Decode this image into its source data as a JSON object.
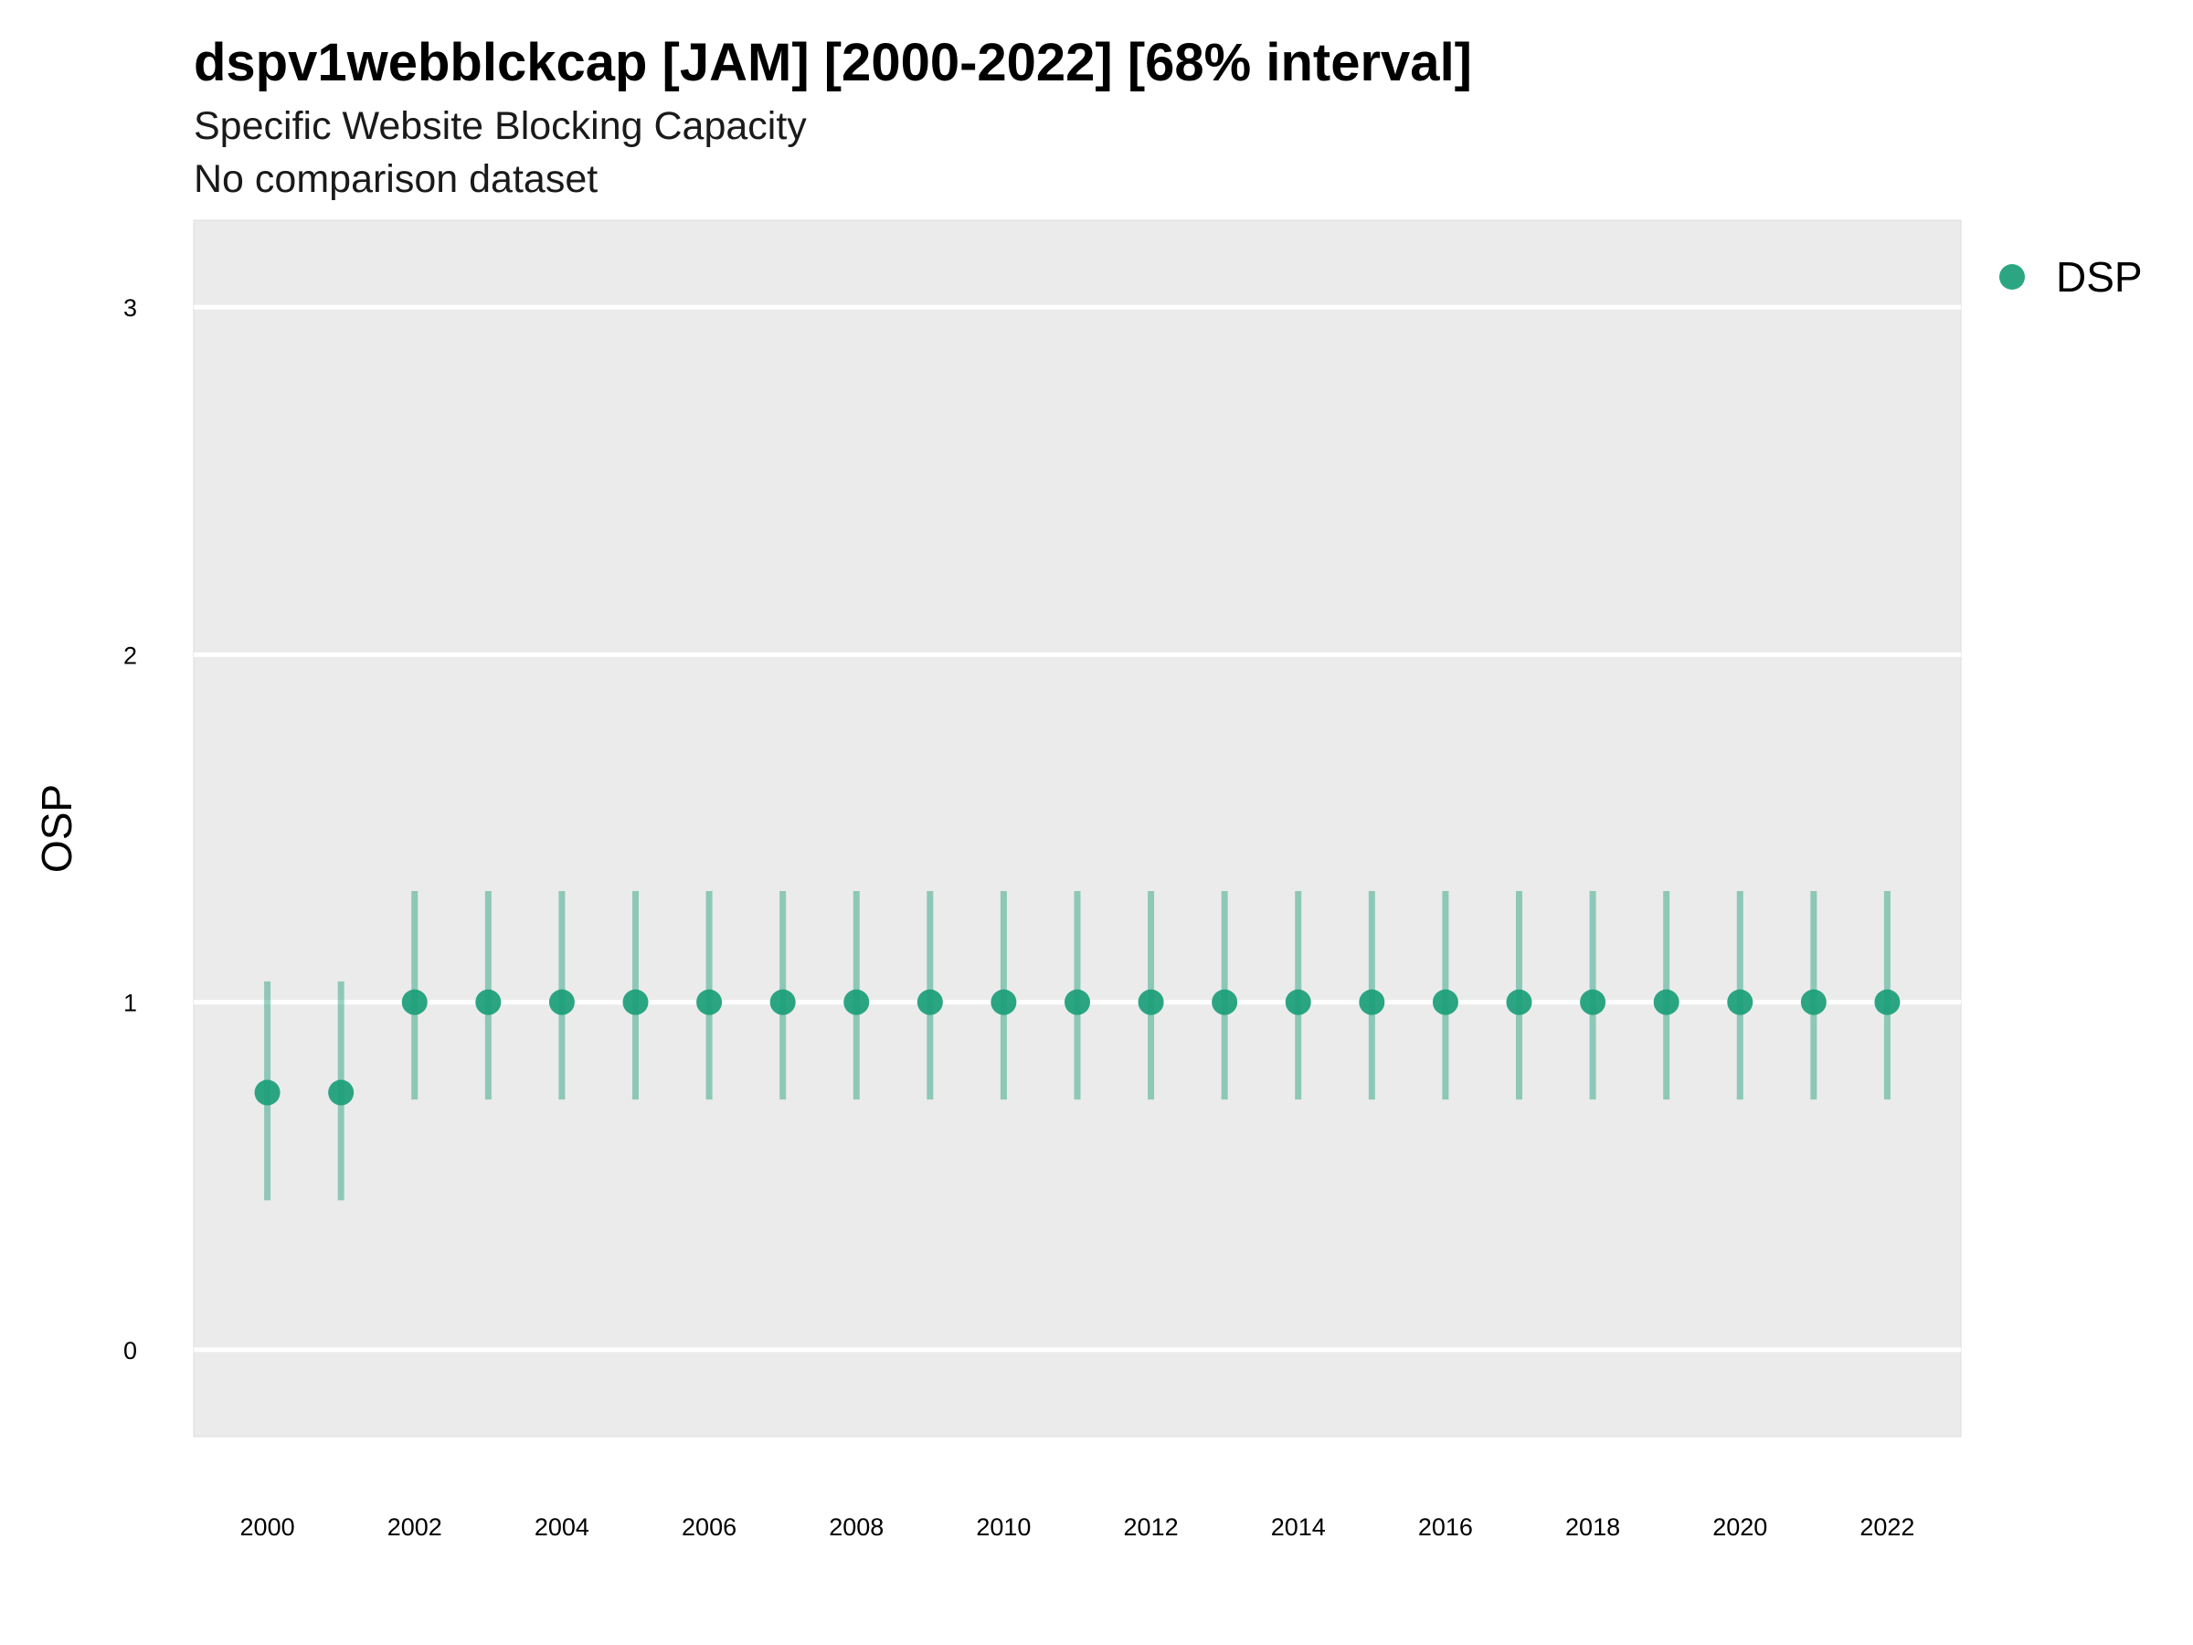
{
  "title": "dspv1webblckcap [JAM] [2000-2022] [68% interval]",
  "subtitle": "Specific Website Blocking Capacity",
  "caption": "No comparison dataset",
  "colors": {
    "panel_background": "#ebebeb",
    "gridline": "#ffffff",
    "series": "#1a9e77"
  },
  "chart_data": {
    "type": "scatter",
    "title": "dspv1webblckcap [JAM] [2000-2022] [68% interval]",
    "subtitle": "Specific Website Blocking Capacity",
    "caption": "No comparison dataset",
    "xlabel": "",
    "ylabel": "OSP",
    "xlim": [
      1999,
      2023
    ],
    "ylim": [
      -0.25,
      3.25
    ],
    "x_ticks": [
      2000,
      2002,
      2004,
      2006,
      2008,
      2010,
      2012,
      2014,
      2016,
      2018,
      2020,
      2022
    ],
    "y_ticks": [
      0,
      1,
      2,
      3
    ],
    "grid": true,
    "legend": {
      "placement": "right",
      "entries": [
        "DSP"
      ]
    },
    "series": [
      {
        "name": "DSP",
        "color": "#1a9e77",
        "x": [
          2000,
          2001,
          2002,
          2003,
          2004,
          2005,
          2006,
          2007,
          2008,
          2009,
          2010,
          2011,
          2012,
          2013,
          2014,
          2015,
          2016,
          2017,
          2018,
          2019,
          2020,
          2021,
          2022
        ],
        "y": [
          0.74,
          0.74,
          1,
          1,
          1,
          1,
          1,
          1,
          1,
          1,
          1,
          1,
          1,
          1,
          1,
          1,
          1,
          1,
          1,
          1,
          1,
          1,
          1
        ],
        "lower": [
          0.43,
          0.43,
          0.72,
          0.72,
          0.72,
          0.72,
          0.72,
          0.72,
          0.72,
          0.72,
          0.72,
          0.72,
          0.72,
          0.72,
          0.72,
          0.72,
          0.72,
          0.72,
          0.72,
          0.72,
          0.72,
          0.72,
          0.72
        ],
        "upper": [
          1.06,
          1.06,
          1.32,
          1.32,
          1.32,
          1.32,
          1.32,
          1.32,
          1.32,
          1.32,
          1.32,
          1.32,
          1.32,
          1.32,
          1.32,
          1.32,
          1.32,
          1.32,
          1.32,
          1.32,
          1.32,
          1.32,
          1.32
        ]
      }
    ]
  }
}
